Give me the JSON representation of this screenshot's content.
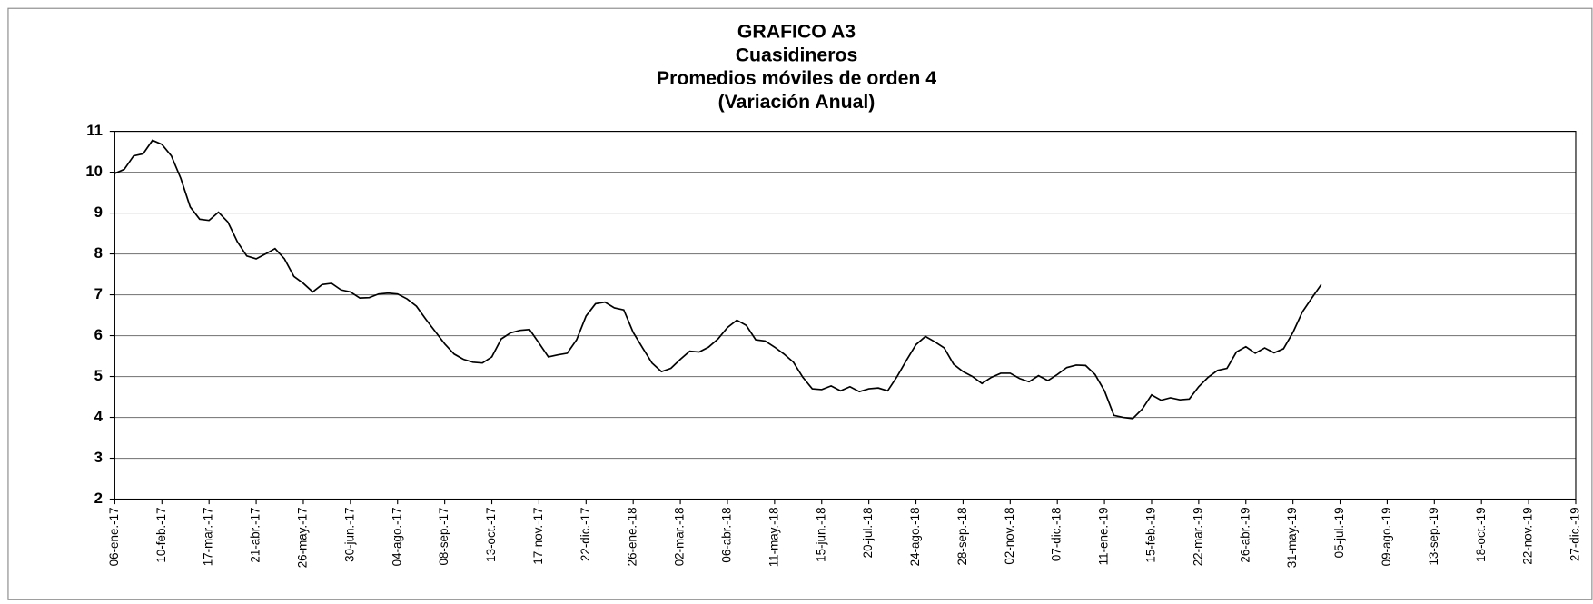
{
  "chart_data": {
    "type": "line",
    "title": "GRAFICO A3",
    "subtitle": [
      "Cuasidineros",
      "Promedios móviles de orden 4",
      "(Variación Anual)"
    ],
    "categories": [
      "06-ene.-17",
      null,
      null,
      null,
      null,
      "10-feb.-17",
      null,
      null,
      null,
      null,
      "17-mar.-17",
      null,
      null,
      null,
      null,
      "21-abr.-17",
      null,
      null,
      null,
      null,
      "26-may.-17",
      null,
      null,
      null,
      null,
      "30-jun.-17",
      null,
      null,
      null,
      null,
      "04-ago.-17",
      null,
      null,
      null,
      null,
      "08-sep.-17",
      null,
      null,
      null,
      null,
      "13-oct.-17",
      null,
      null,
      null,
      null,
      "17-nov.-17",
      null,
      null,
      null,
      null,
      "22-dic.-17",
      null,
      null,
      null,
      null,
      "26-ene.-18",
      null,
      null,
      null,
      null,
      "02-mar.-18",
      null,
      null,
      null,
      null,
      "06-abr.-18",
      null,
      null,
      null,
      null,
      "11-may.-18",
      null,
      null,
      null,
      null,
      "15-jun.-18",
      null,
      null,
      null,
      null,
      "20-jul.-18",
      null,
      null,
      null,
      null,
      "24-ago.-18",
      null,
      null,
      null,
      null,
      "28-sep.-18",
      null,
      null,
      null,
      null,
      "02-nov.-18",
      null,
      null,
      null,
      null,
      "07-dic.-18",
      null,
      null,
      null,
      null,
      "11-ene.-19",
      null,
      null,
      null,
      null,
      "15-feb.-19",
      null,
      null,
      null,
      null,
      "22-mar.-19",
      null,
      null,
      null,
      null,
      "26-abr.-19",
      null,
      null,
      null,
      null,
      "31-may.-19",
      null,
      null,
      null,
      null,
      "05-jul.-19",
      null,
      null,
      null,
      null,
      "09-ago.-19",
      null,
      null,
      null,
      null,
      "13-sep.-19",
      null,
      null,
      null,
      null,
      "18-oct.-19",
      null,
      null,
      null,
      null,
      "22-nov.-19",
      null,
      null,
      null,
      null,
      "27-dic.-19"
    ],
    "values": [
      9.97,
      10.07,
      10.4,
      10.45,
      10.78,
      10.68,
      10.4,
      9.85,
      9.15,
      8.85,
      8.82,
      9.02,
      8.78,
      8.3,
      7.95,
      7.88,
      8.0,
      8.13,
      7.88,
      7.45,
      7.28,
      7.07,
      7.25,
      7.28,
      7.12,
      7.07,
      6.92,
      6.93,
      7.02,
      7.04,
      7.02,
      6.9,
      6.72,
      6.4,
      6.1,
      5.8,
      5.55,
      5.42,
      5.35,
      5.33,
      5.48,
      5.92,
      6.07,
      6.13,
      6.15,
      5.82,
      5.48,
      5.53,
      5.57,
      5.9,
      6.48,
      6.78,
      6.82,
      6.68,
      6.63,
      6.08,
      5.7,
      5.33,
      5.12,
      5.2,
      5.42,
      5.62,
      5.6,
      5.72,
      5.92,
      6.2,
      6.38,
      6.25,
      5.9,
      5.87,
      5.72,
      5.55,
      5.35,
      4.98,
      4.7,
      4.68,
      4.77,
      4.65,
      4.75,
      4.63,
      4.7,
      4.72,
      4.65,
      5.0,
      5.4,
      5.78,
      5.98,
      5.85,
      5.7,
      5.3,
      5.12,
      5.0,
      4.83,
      4.98,
      5.08,
      5.08,
      4.95,
      4.87,
      5.02,
      4.9,
      5.05,
      5.22,
      5.28,
      5.27,
      5.05,
      4.65,
      4.05,
      4.0,
      3.97,
      4.2,
      4.55,
      4.42,
      4.48,
      4.43,
      4.45,
      4.75,
      4.98,
      5.15,
      5.2,
      5.6,
      5.73,
      5.57,
      5.7,
      5.58,
      5.68,
      6.08,
      6.58,
      6.92,
      7.25,
      null,
      null,
      null,
      null,
      null,
      null,
      null,
      null,
      null,
      null,
      null,
      null,
      null,
      null,
      null,
      null,
      null,
      null,
      null,
      null,
      null,
      null,
      null,
      null,
      null,
      null,
      null
    ],
    "color": "#000000",
    "ylim": [
      2,
      11
    ],
    "yticks": [
      2,
      3,
      4,
      5,
      6,
      7,
      8,
      9,
      10,
      11
    ],
    "grid": true
  }
}
